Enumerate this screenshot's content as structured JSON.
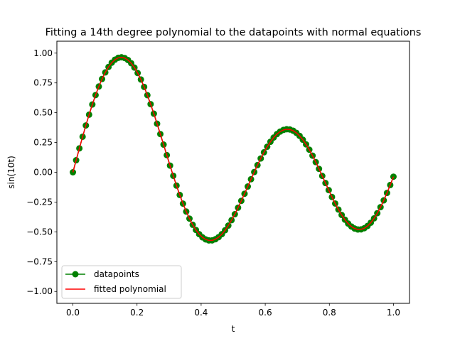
{
  "chart_data": {
    "type": "line",
    "title": "Fitting a 14th degree polynomial to the datapoints with normal equations",
    "xlabel": "t",
    "ylabel": "sin(10t)",
    "xlim": [
      -0.05,
      1.05
    ],
    "ylim": [
      -1.1,
      1.1
    ],
    "x_ticks": [
      0.0,
      0.2,
      0.4,
      0.6,
      0.8,
      1.0
    ],
    "x_tick_labels": [
      "0.0",
      "0.2",
      "0.4",
      "0.6",
      "0.8",
      "1.0"
    ],
    "y_ticks": [
      -1.0,
      -0.75,
      -0.5,
      -0.25,
      0.0,
      0.25,
      0.5,
      0.75,
      1.0
    ],
    "y_tick_labels": [
      "−1.00",
      "−0.75",
      "−0.50",
      "−0.25",
      "0.00",
      "0.25",
      "0.50",
      "0.75",
      "1.00"
    ],
    "grid": false,
    "legend_position": "lower-left",
    "series": [
      {
        "name": "datapoints",
        "style": "line-with-circle-markers",
        "color": "#008000",
        "x": [
          0.0,
          0.0101,
          0.0202,
          0.0303,
          0.0404,
          0.0505,
          0.0606,
          0.0707,
          0.0808,
          0.0909,
          0.101,
          0.1111,
          0.1212,
          0.1313,
          0.1414,
          0.1515,
          0.1616,
          0.1717,
          0.1818,
          0.1919,
          0.202,
          0.2121,
          0.2222,
          0.2323,
          0.2424,
          0.2525,
          0.2626,
          0.2727,
          0.2828,
          0.2929,
          0.303,
          0.3131,
          0.3232,
          0.3333,
          0.3434,
          0.3535,
          0.3636,
          0.3737,
          0.3838,
          0.3939,
          0.404,
          0.4141,
          0.4242,
          0.4343,
          0.4444,
          0.4545,
          0.4646,
          0.4747,
          0.4848,
          0.4949,
          0.5051,
          0.5152,
          0.5253,
          0.5354,
          0.5455,
          0.5556,
          0.5657,
          0.5758,
          0.5859,
          0.596,
          0.6061,
          0.6162,
          0.6263,
          0.6364,
          0.6465,
          0.6566,
          0.6667,
          0.6768,
          0.6869,
          0.697,
          0.7071,
          0.7172,
          0.7273,
          0.7374,
          0.7475,
          0.7576,
          0.7677,
          0.7778,
          0.7879,
          0.798,
          0.8081,
          0.8182,
          0.8283,
          0.8384,
          0.8485,
          0.8586,
          0.8687,
          0.8788,
          0.8889,
          0.899,
          0.9091,
          0.9192,
          0.9293,
          0.9394,
          0.9495,
          0.9596,
          0.9697,
          0.9798,
          0.9899,
          1.0
        ],
        "y": [
          0.0,
          0.101,
          0.2006,
          0.2984,
          0.3931,
          0.4836,
          0.5688,
          0.6478,
          0.7196,
          0.7832,
          0.8383,
          0.8839,
          0.9197,
          0.9453,
          0.9603,
          0.9648,
          0.9586,
          0.9421,
          0.9153,
          0.8787,
          0.833,
          0.7786,
          0.7164,
          0.6472,
          0.5719,
          0.4917,
          0.4076,
          0.3208,
          0.2324,
          0.1438,
          0.056,
          -0.0297,
          -0.1121,
          -0.1903,
          -0.2631,
          -0.3296,
          -0.3889,
          -0.4406,
          -0.4843,
          -0.5194,
          -0.5459,
          -0.5633,
          -0.5719,
          -0.5714,
          -0.5623,
          -0.5447,
          -0.5193,
          -0.4866,
          -0.4472,
          -0.402,
          -0.3518,
          -0.2974,
          -0.2399,
          -0.1802,
          -0.1193,
          -0.0582,
          0.002,
          0.0603,
          0.1158,
          0.1674,
          0.2144,
          0.256,
          0.2914,
          0.3201,
          0.3415,
          0.3553,
          0.3612,
          0.3591,
          0.3491,
          0.3312,
          0.3058,
          0.2733,
          0.2343,
          0.1895,
          0.1396,
          0.0856,
          0.0285,
          -0.0306,
          -0.0904,
          -0.1497,
          -0.2073,
          -0.262,
          -0.3127,
          -0.3582,
          -0.3977,
          -0.4303,
          -0.4552,
          -0.4719,
          -0.48,
          -0.4792,
          -0.4694,
          -0.4505,
          -0.423,
          -0.3871,
          -0.3435,
          -0.2928,
          -0.2358,
          -0.1735,
          -0.1068,
          -0.0369
        ]
      },
      {
        "name": "fitted polynomial",
        "style": "solid-line",
        "color": "#ff0000",
        "x": [
          0.0,
          0.0101,
          0.0202,
          0.0303,
          0.0404,
          0.0505,
          0.0606,
          0.0707,
          0.0808,
          0.0909,
          0.101,
          0.1111,
          0.1212,
          0.1313,
          0.1414,
          0.1515,
          0.1616,
          0.1717,
          0.1818,
          0.1919,
          0.202,
          0.2121,
          0.2222,
          0.2323,
          0.2424,
          0.2525,
          0.2626,
          0.2727,
          0.2828,
          0.2929,
          0.303,
          0.3131,
          0.3232,
          0.3333,
          0.3434,
          0.3535,
          0.3636,
          0.3737,
          0.3838,
          0.3939,
          0.404,
          0.4141,
          0.4242,
          0.4343,
          0.4444,
          0.4545,
          0.4646,
          0.4747,
          0.4848,
          0.4949,
          0.5051,
          0.5152,
          0.5253,
          0.5354,
          0.5455,
          0.5556,
          0.5657,
          0.5758,
          0.5859,
          0.596,
          0.6061,
          0.6162,
          0.6263,
          0.6364,
          0.6465,
          0.6566,
          0.6667,
          0.6768,
          0.6869,
          0.697,
          0.7071,
          0.7172,
          0.7273,
          0.7374,
          0.7475,
          0.7576,
          0.7677,
          0.7778,
          0.7879,
          0.798,
          0.8081,
          0.8182,
          0.8283,
          0.8384,
          0.8485,
          0.8586,
          0.8687,
          0.8788,
          0.8889,
          0.899,
          0.9091,
          0.9192,
          0.9293,
          0.9394,
          0.9495,
          0.9596,
          0.9697,
          0.9798,
          0.9899,
          1.0
        ],
        "y": [
          0.0,
          0.101,
          0.2006,
          0.2984,
          0.3931,
          0.4836,
          0.5688,
          0.6478,
          0.7196,
          0.7832,
          0.8383,
          0.8839,
          0.9197,
          0.9453,
          0.9603,
          0.9648,
          0.9586,
          0.9421,
          0.9153,
          0.8787,
          0.833,
          0.7786,
          0.7164,
          0.6472,
          0.5719,
          0.4917,
          0.4076,
          0.3208,
          0.2324,
          0.1438,
          0.056,
          -0.0297,
          -0.1121,
          -0.1903,
          -0.2631,
          -0.3296,
          -0.3889,
          -0.4406,
          -0.4843,
          -0.5194,
          -0.5459,
          -0.5633,
          -0.5719,
          -0.5714,
          -0.5623,
          -0.5447,
          -0.5193,
          -0.4866,
          -0.4472,
          -0.402,
          -0.3518,
          -0.2974,
          -0.2399,
          -0.1802,
          -0.1193,
          -0.0582,
          0.002,
          0.0603,
          0.1158,
          0.1674,
          0.2144,
          0.256,
          0.2914,
          0.3201,
          0.3415,
          0.3553,
          0.3612,
          0.3591,
          0.3491,
          0.3312,
          0.3058,
          0.2733,
          0.2343,
          0.1895,
          0.1396,
          0.0856,
          0.0285,
          -0.0306,
          -0.0904,
          -0.1497,
          -0.2073,
          -0.262,
          -0.3127,
          -0.3582,
          -0.3977,
          -0.4303,
          -0.4552,
          -0.4719,
          -0.48,
          -0.4792,
          -0.4694,
          -0.4505,
          -0.423,
          -0.3871,
          -0.3435,
          -0.2928,
          -0.2358,
          -0.1735,
          -0.1068,
          -0.0369
        ]
      }
    ]
  }
}
